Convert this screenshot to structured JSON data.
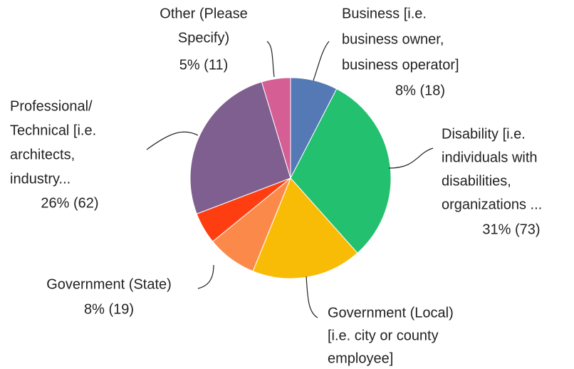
{
  "chart_data": {
    "type": "pie",
    "categories": [
      [
        "Business [i.e.",
        "business owner,",
        "business operator]"
      ],
      [
        "Disability [i.e.",
        "individuals with",
        "disabilities,",
        "organizations ..."
      ],
      [
        "Government (Local)",
        "[i.e. city or county",
        "employee]"
      ],
      [
        "Government (State)"
      ],
      null,
      [
        "Professional/",
        "Technical [i.e.",
        "architects,",
        "industry..."
      ],
      [
        "Other (Please",
        "Specify)"
      ]
    ],
    "values": [
      18,
      73,
      42,
      19,
      12,
      62,
      11
    ],
    "value_labels": [
      "8% (18)",
      "31% (73)",
      null,
      "8% (19)",
      null,
      "26% (62)",
      "5% (11)"
    ],
    "colors": [
      "#5479b5",
      "#22c06f",
      "#f9bc06",
      "#fb8a4a",
      "#fe3e10",
      "#7e5f8f",
      "#d55f94"
    ]
  }
}
